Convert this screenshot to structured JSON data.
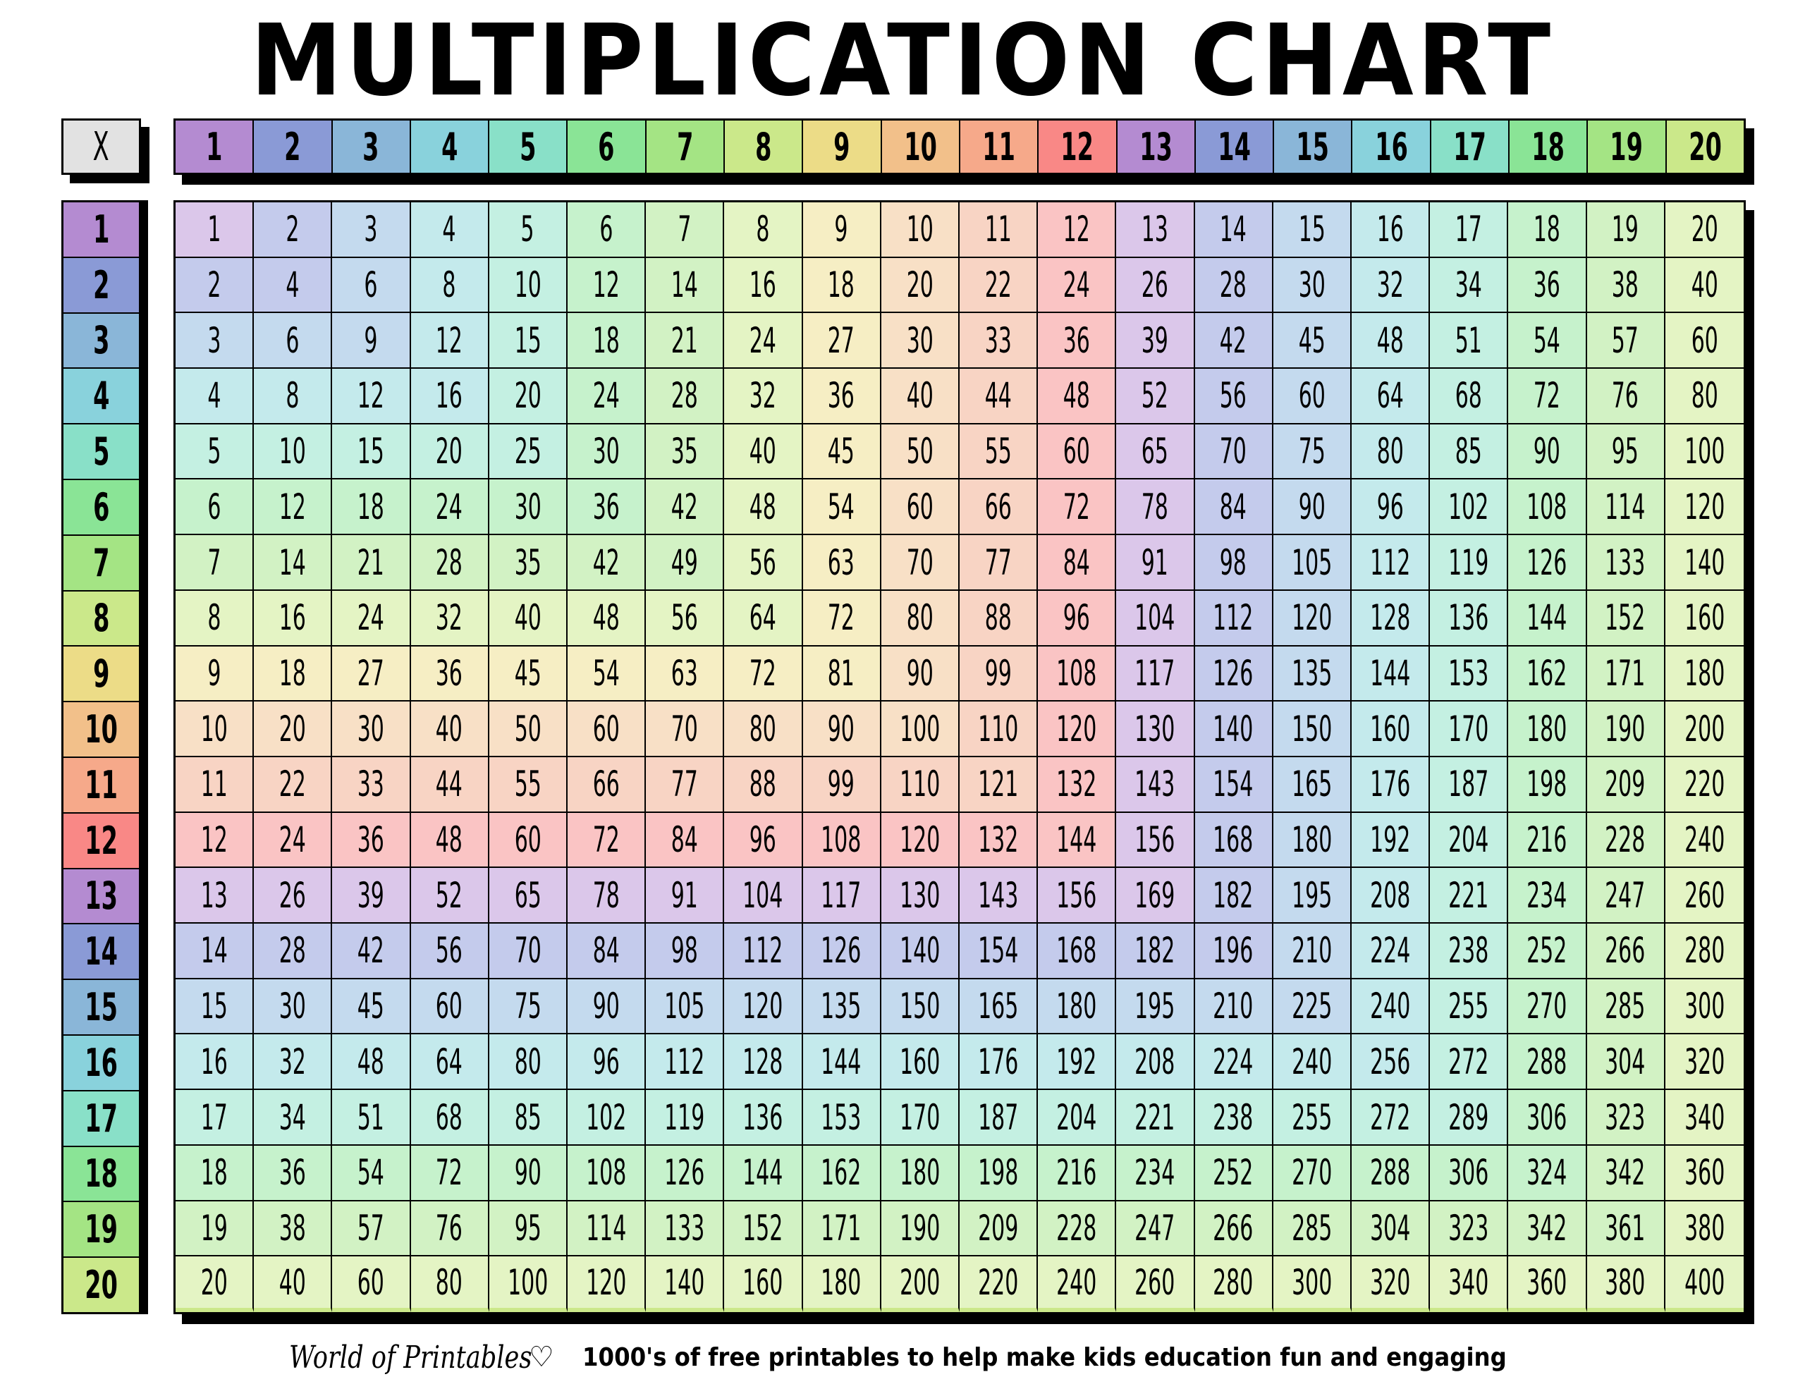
{
  "title": "MULTIPLICATION CHART",
  "corner_label": "X",
  "colors": {
    "header": [
      "#b48bd1",
      "#8a9ad6",
      "#8ab6d8",
      "#89d2dc",
      "#89e0c8",
      "#8ae496",
      "#a4e484",
      "#cbe88a",
      "#ecdc87",
      "#f2c08a",
      "#f6a98a",
      "#f98886"
    ],
    "cell": [
      "#dbc7ea",
      "#c4cbec",
      "#c4daee",
      "#c4eaec",
      "#c4f0e2",
      "#c6f2cc",
      "#d2f2c4",
      "#e4f4c4",
      "#f6eec4",
      "#f8e0c6",
      "#f8d4c4",
      "#fac4c4"
    ]
  },
  "column_headers": [
    "1",
    "2",
    "3",
    "4",
    "5",
    "6",
    "7",
    "8",
    "9",
    "10",
    "11",
    "12",
    "13",
    "14",
    "15",
    "16",
    "17",
    "18",
    "19",
    "20"
  ],
  "row_headers": [
    "1",
    "2",
    "3",
    "4",
    "5",
    "6",
    "7",
    "8",
    "9",
    "10",
    "11",
    "12",
    "13",
    "14",
    "15",
    "16",
    "17",
    "18",
    "19",
    "20"
  ],
  "rows": [
    [
      "1",
      "2",
      "3",
      "4",
      "5",
      "6",
      "7",
      "8",
      "9",
      "10",
      "11",
      "12",
      "13",
      "14",
      "15",
      "16",
      "17",
      "18",
      "19",
      "20"
    ],
    [
      "2",
      "4",
      "6",
      "8",
      "10",
      "12",
      "14",
      "16",
      "18",
      "20",
      "22",
      "24",
      "26",
      "28",
      "30",
      "32",
      "34",
      "36",
      "38",
      "40"
    ],
    [
      "3",
      "6",
      "9",
      "12",
      "15",
      "18",
      "21",
      "24",
      "27",
      "30",
      "33",
      "36",
      "39",
      "42",
      "45",
      "48",
      "51",
      "54",
      "57",
      "60"
    ],
    [
      "4",
      "8",
      "12",
      "16",
      "20",
      "24",
      "28",
      "32",
      "36",
      "40",
      "44",
      "48",
      "52",
      "56",
      "60",
      "64",
      "68",
      "72",
      "76",
      "80"
    ],
    [
      "5",
      "10",
      "15",
      "20",
      "25",
      "30",
      "35",
      "40",
      "45",
      "50",
      "55",
      "60",
      "65",
      "70",
      "75",
      "80",
      "85",
      "90",
      "95",
      "100"
    ],
    [
      "6",
      "12",
      "18",
      "24",
      "30",
      "36",
      "42",
      "48",
      "54",
      "60",
      "66",
      "72",
      "78",
      "84",
      "90",
      "96",
      "102",
      "108",
      "114",
      "120"
    ],
    [
      "7",
      "14",
      "21",
      "28",
      "35",
      "42",
      "49",
      "56",
      "63",
      "70",
      "77",
      "84",
      "91",
      "98",
      "105",
      "112",
      "119",
      "126",
      "133",
      "140"
    ],
    [
      "8",
      "16",
      "24",
      "32",
      "40",
      "48",
      "56",
      "64",
      "72",
      "80",
      "88",
      "96",
      "104",
      "112",
      "120",
      "128",
      "136",
      "144",
      "152",
      "160"
    ],
    [
      "9",
      "18",
      "27",
      "36",
      "45",
      "54",
      "63",
      "72",
      "81",
      "90",
      "99",
      "108",
      "117",
      "126",
      "135",
      "144",
      "153",
      "162",
      "171",
      "180"
    ],
    [
      "10",
      "20",
      "30",
      "40",
      "50",
      "60",
      "70",
      "80",
      "90",
      "100",
      "110",
      "120",
      "130",
      "140",
      "150",
      "160",
      "170",
      "180",
      "190",
      "200"
    ],
    [
      "11",
      "22",
      "33",
      "44",
      "55",
      "66",
      "77",
      "88",
      "99",
      "110",
      "121",
      "132",
      "143",
      "154",
      "165",
      "176",
      "187",
      "198",
      "209",
      "220"
    ],
    [
      "12",
      "24",
      "36",
      "48",
      "60",
      "72",
      "84",
      "96",
      "108",
      "120",
      "132",
      "144",
      "156",
      "168",
      "180",
      "192",
      "204",
      "216",
      "228",
      "240"
    ],
    [
      "13",
      "26",
      "39",
      "52",
      "65",
      "78",
      "91",
      "104",
      "117",
      "130",
      "143",
      "156",
      "169",
      "182",
      "195",
      "208",
      "221",
      "234",
      "247",
      "260"
    ],
    [
      "14",
      "28",
      "42",
      "56",
      "70",
      "84",
      "98",
      "112",
      "126",
      "140",
      "154",
      "168",
      "182",
      "196",
      "210",
      "224",
      "238",
      "252",
      "266",
      "280"
    ],
    [
      "15",
      "30",
      "45",
      "60",
      "75",
      "90",
      "105",
      "120",
      "135",
      "150",
      "165",
      "180",
      "195",
      "210",
      "225",
      "240",
      "255",
      "270",
      "285",
      "300"
    ],
    [
      "16",
      "32",
      "48",
      "64",
      "80",
      "96",
      "112",
      "128",
      "144",
      "160",
      "176",
      "192",
      "208",
      "224",
      "240",
      "256",
      "272",
      "288",
      "304",
      "320"
    ],
    [
      "17",
      "34",
      "51",
      "68",
      "85",
      "102",
      "119",
      "136",
      "153",
      "170",
      "187",
      "204",
      "221",
      "238",
      "255",
      "272",
      "289",
      "306",
      "323",
      "340"
    ],
    [
      "18",
      "36",
      "54",
      "72",
      "90",
      "108",
      "126",
      "144",
      "162",
      "180",
      "198",
      "216",
      "234",
      "252",
      "270",
      "288",
      "306",
      "324",
      "342",
      "360"
    ],
    [
      "19",
      "38",
      "57",
      "76",
      "95",
      "114",
      "133",
      "152",
      "171",
      "190",
      "209",
      "228",
      "247",
      "266",
      "285",
      "304",
      "323",
      "342",
      "361",
      "380"
    ],
    [
      "20",
      "40",
      "60",
      "80",
      "100",
      "120",
      "140",
      "160",
      "180",
      "200",
      "220",
      "240",
      "260",
      "280",
      "300",
      "320",
      "340",
      "360",
      "380",
      "400"
    ]
  ],
  "footer": {
    "logo": "World of Printables",
    "logo_icon": "heart-icon",
    "tagline": "1000's of free printables to help make kids education fun and engaging"
  }
}
